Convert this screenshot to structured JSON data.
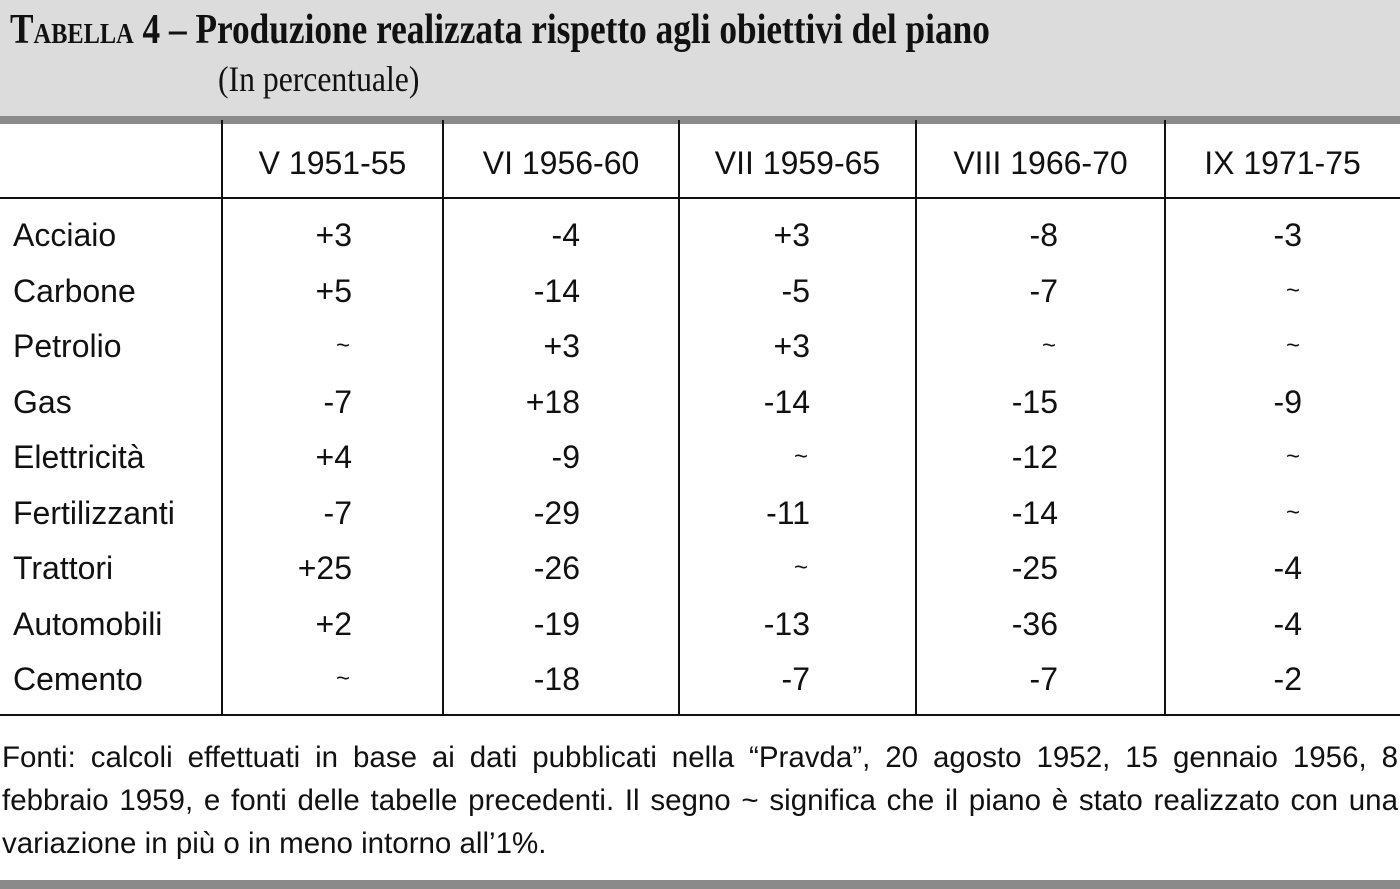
{
  "header": {
    "label": "Tabella",
    "title": "4 – Produzione realizzata rispetto agli obiettivi del piano",
    "subtitle": "(In percentuale)"
  },
  "table": {
    "columns": [
      "V 1951-55",
      "VI 1956-60",
      "VII 1959-65",
      "VIII 1966-70",
      "IX 1971-75"
    ],
    "rows": [
      [
        "Acciaio",
        "+3",
        "-4",
        "+3",
        "-8",
        "-3"
      ],
      [
        "Carbone",
        "+5",
        "-14",
        "-5",
        "-7",
        "~"
      ],
      [
        "Petrolio",
        "~",
        "+3",
        "+3",
        "~",
        "~"
      ],
      [
        "Gas",
        "-7",
        "+18",
        "-14",
        "-15",
        "-9"
      ],
      [
        "Elettricità",
        "+4",
        "-9",
        "~",
        "-12",
        "~"
      ],
      [
        "Fertilizzanti",
        "-7",
        "-29",
        "-11",
        "-14",
        "~"
      ],
      [
        "Trattori",
        "+25",
        "-26",
        "~",
        "-25",
        "-4"
      ],
      [
        "Automobili",
        "+2",
        "-19",
        "-13",
        "-36",
        "-4"
      ],
      [
        "Cemento",
        "~",
        "-18",
        "-7",
        "-7",
        "-2"
      ]
    ]
  },
  "footer": {
    "note": "Fonti: calcoli effettuati in base ai dati pubblicati nella “Pravda”, 20 agosto 1952, 15 gennaio 1956, 8 febbraio 1959, e fonti delle tabelle precedenti. Il segno ~ significa che il piano è stato realizzato con una variazione in più o in meno intorno all’1%."
  }
}
